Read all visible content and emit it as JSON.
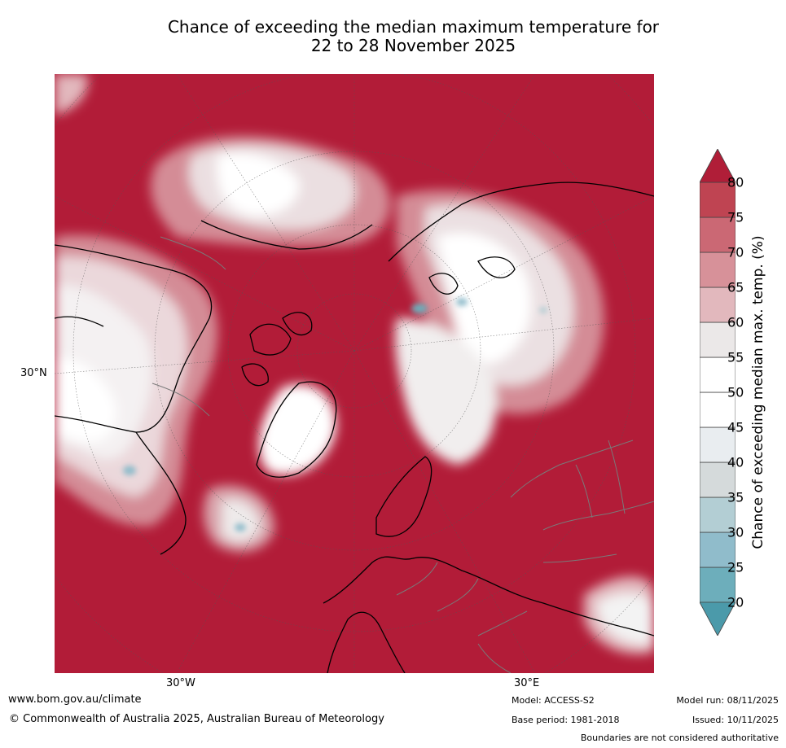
{
  "title_line1": "Chance of exceeding the median maximum temperature for",
  "title_line2": "22 to 28 November 2025",
  "map": {
    "lat_label": "30°N",
    "lon_labels": [
      "30°W",
      "30°E"
    ]
  },
  "colorbar": {
    "title": "Chance of exceeding median max. temp. (%)",
    "ticks": [
      "80",
      "75",
      "70",
      "65",
      "60",
      "55",
      "50",
      "45",
      "40",
      "35",
      "30",
      "25",
      "20"
    ],
    "colors": [
      "#4b9aaa",
      "#6daebb",
      "#90bccb",
      "#b3ced4",
      "#d5dadb",
      "#e9edf0",
      "#ffffff",
      "#ffffff",
      "#ebe8e8",
      "#e2b8bd",
      "#d79199",
      "#cb6874",
      "#bf4452",
      "#b01e38"
    ]
  },
  "footer": {
    "url": "www.bom.gov.au/climate",
    "copyright": "© Commonwealth of Australia 2025, Australian Bureau of Meteorology",
    "model": "Model: ACCESS-S2",
    "base_period": "Base period: 1981-2018",
    "model_run": "Model run: 08/11/2025",
    "issued": "Issued: 10/11/2025",
    "disclaimer": "Boundaries are not considered authoritative"
  }
}
